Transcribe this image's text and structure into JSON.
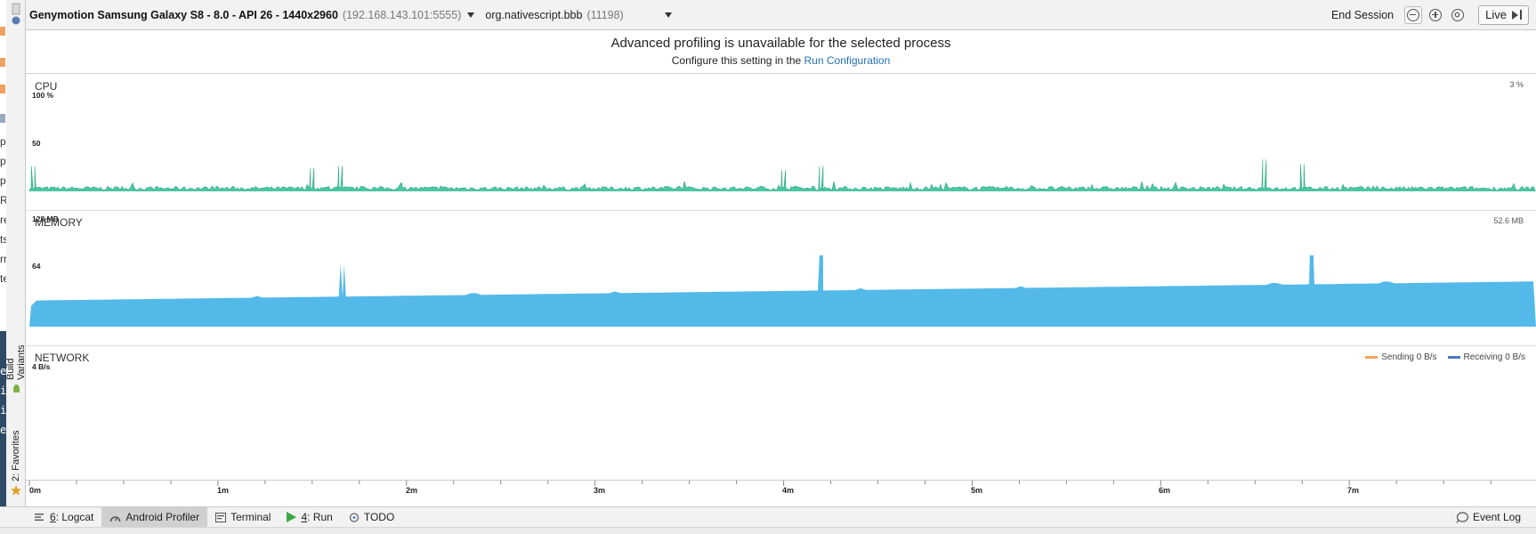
{
  "colors": {
    "cpu": "#4cc6a3",
    "memory": "#53b9e8",
    "sending": "#f2a35c",
    "receiving": "#4a78c8",
    "link": "#2470b3"
  },
  "left_strip": {
    "fragments": [
      "p",
      "p",
      "p",
      "R",
      "re",
      "ts",
      "rr",
      "te"
    ],
    "dark_fragments": [
      "e",
      "i",
      "i",
      "e"
    ]
  },
  "side_tabs": [
    {
      "label": "Build Variants",
      "icon": "android-icon"
    },
    {
      "label": "2: Favorites",
      "icon": "star-icon"
    }
  ],
  "toolbar": {
    "device_name": "Genymotion Samsung Galaxy S8 - 8.0 - API 26 - 1440x2960",
    "device_ip": "(192.168.143.101:5555)",
    "process_name": "org.nativescript.bbb",
    "process_pid": "(11198)",
    "end_session": "End Session",
    "live": "Live"
  },
  "banner": {
    "title": "Advanced profiling is unavailable for the selected process",
    "subtitle_prefix": "Configure this setting in the",
    "link": "Run Configuration"
  },
  "cpu": {
    "title": "CPU",
    "current": "3 %",
    "y_top": "100 %",
    "y_mid": "50",
    "series": {
      "baseline_percent": 3,
      "spikes": [
        {
          "t_min": 0.02,
          "percent": 26
        },
        {
          "t_min": 1.65,
          "percent": 26
        },
        {
          "t_min": 1.5,
          "percent": 24
        },
        {
          "t_min": 4.0,
          "percent": 22
        },
        {
          "t_min": 4.2,
          "percent": 26
        },
        {
          "t_min": 6.55,
          "percent": 33
        },
        {
          "t_min": 6.75,
          "percent": 28
        }
      ]
    }
  },
  "memory": {
    "title": "MEMORY",
    "current": "52.6 MB",
    "y_top": "128 MB",
    "y_mid": "64",
    "series": {
      "start_mb": 30,
      "end_mb": 52,
      "spikes": [
        {
          "t_min": 1.66,
          "mb": 72
        },
        {
          "t_min": 4.2,
          "mb": 82
        },
        {
          "t_min": 6.8,
          "mb": 82
        }
      ]
    }
  },
  "network": {
    "title": "NETWORK",
    "y_top": "4 B/s",
    "sending": "Sending 0 B/s",
    "receiving": "Receiving 0 B/s"
  },
  "time_axis": {
    "labels": [
      "0m",
      "1m",
      "2m",
      "3m",
      "4m",
      "5m",
      "6m",
      "7m"
    ],
    "range_min": [
      0,
      7.99
    ]
  },
  "bottom_tabs": [
    {
      "key": "6",
      "label": ": Logcat",
      "icon": "logcat-icon",
      "active": false
    },
    {
      "key": "",
      "label": "Android Profiler",
      "icon": "profiler-gauge-icon",
      "active": true
    },
    {
      "key": "",
      "label": "Terminal",
      "icon": "terminal-icon",
      "active": false
    },
    {
      "key": "4",
      "label": ": Run",
      "icon": "run-icon",
      "active": false
    },
    {
      "key": "",
      "label": "TODO",
      "icon": "todo-icon",
      "active": false
    }
  ],
  "event_log": "Event Log"
}
